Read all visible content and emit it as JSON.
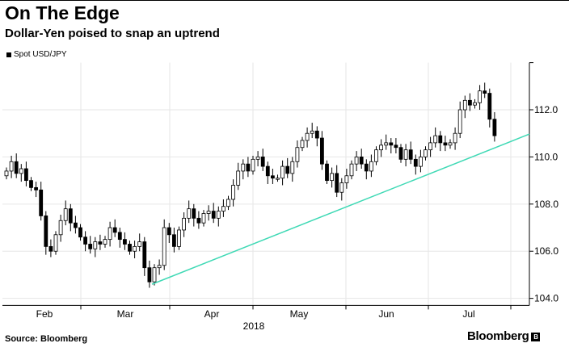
{
  "title": "On The Edge",
  "subtitle": "Dollar-Yen poised to snap an uptrend",
  "source": "Source: Bloomberg",
  "logo": "Bloomberg",
  "chart_data": {
    "type": "candlestick",
    "legend": "Spot USD/JPY",
    "xlabel": "2018",
    "x_tick_labels": [
      "Feb",
      "Mar",
      "Apr",
      "May",
      "Jun",
      "Jul"
    ],
    "y_ticks": [
      104.0,
      106.0,
      108.0,
      110.0,
      112.0
    ],
    "y_tick_labels": [
      "104.0",
      "106.0",
      "108.0",
      "110.0",
      "112.0"
    ],
    "ylim": [
      103.7,
      114.0
    ],
    "first_open": 109.2,
    "closes": [
      109.4,
      109.8,
      109.3,
      109.5,
      109.0,
      108.7,
      108.6,
      107.5,
      106.2,
      106.0,
      106.7,
      107.3,
      107.8,
      107.2,
      107.0,
      106.6,
      106.3,
      106.1,
      106.4,
      106.3,
      106.5,
      107.0,
      106.8,
      106.5,
      106.3,
      106.0,
      106.2,
      106.4,
      105.3,
      104.7,
      105.3,
      105.4,
      107.0,
      106.7,
      106.2,
      106.9,
      107.4,
      107.8,
      107.4,
      107.2,
      107.6,
      107.7,
      107.4,
      107.7,
      107.9,
      108.2,
      108.8,
      109.4,
      109.7,
      109.4,
      109.9,
      110.0,
      109.6,
      109.2,
      109.1,
      109.1,
      109.6,
      109.3,
      109.8,
      110.4,
      110.7,
      111.0,
      111.1,
      110.8,
      109.7,
      109.0,
      109.3,
      108.5,
      108.9,
      109.2,
      109.7,
      110.0,
      109.7,
      109.4,
      109.8,
      110.3,
      110.5,
      110.6,
      110.5,
      110.4,
      109.9,
      110.3,
      109.9,
      109.6,
      110.0,
      110.3,
      110.6,
      110.9,
      110.6,
      110.5,
      110.6,
      111.0,
      112.0,
      112.4,
      112.2,
      112.3,
      112.8,
      112.7,
      111.6,
      110.9
    ],
    "trendline": {
      "start": 104.6,
      "end": 110.97,
      "color": "#3fd9b5"
    },
    "colors": {
      "up": "#ffffff",
      "down": "#000000",
      "grid": "#e6e6e6"
    }
  }
}
